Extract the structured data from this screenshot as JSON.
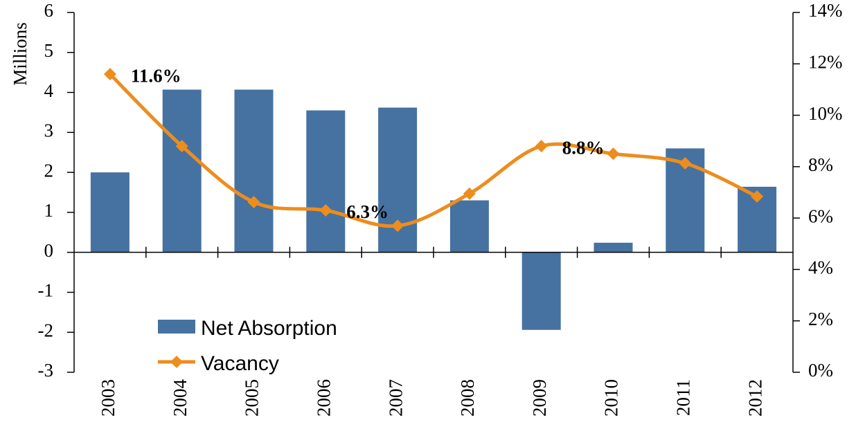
{
  "chart_data": {
    "type": "bar",
    "categories": [
      "2003",
      "2004",
      "2005",
      "2006",
      "2007",
      "2008",
      "2009",
      "2010",
      "2011",
      "2012"
    ],
    "ylabel": "Millions",
    "series": [
      {
        "name": "Net Absorption",
        "type": "bar",
        "color": "#4672a1",
        "values": [
          2.0,
          4.07,
          4.07,
          3.55,
          3.62,
          1.3,
          -1.94,
          0.24,
          2.6,
          1.64
        ]
      },
      {
        "name": "Vacancy",
        "type": "line",
        "axis": "y2",
        "color": "#ed8d1d",
        "values": [
          11.6,
          8.8,
          6.62,
          6.3,
          5.7,
          6.95,
          8.8,
          8.5,
          8.13,
          6.84
        ],
        "value_labels": [
          "11.6%",
          null,
          null,
          "6.3%",
          null,
          null,
          "8.8%",
          null,
          null,
          null
        ]
      }
    ],
    "ylim": [
      -3,
      6
    ],
    "yticks": [
      -3,
      -2,
      -1,
      0,
      1,
      2,
      3,
      4,
      5,
      6
    ],
    "y2lim": [
      0,
      14
    ],
    "y2ticks": [
      {
        "value": 0,
        "label": "0%"
      },
      {
        "value": 2,
        "label": "2%"
      },
      {
        "value": 4,
        "label": "4%"
      },
      {
        "value": 6,
        "label": "6%"
      },
      {
        "value": 8,
        "label": "8%"
      },
      {
        "value": 10,
        "label": "10%"
      },
      {
        "value": 12,
        "label": "12%"
      },
      {
        "value": 14,
        "label": "14%"
      }
    ],
    "legend": "lower left"
  }
}
